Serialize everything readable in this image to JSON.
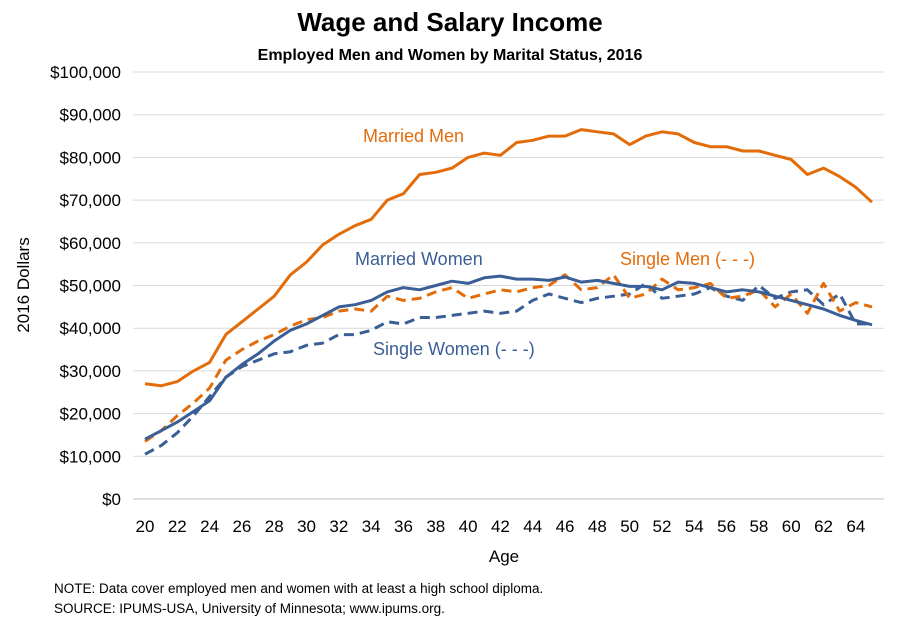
{
  "chart_data": {
    "type": "line",
    "title": "Wage and Salary Income",
    "subtitle": "Employed Men and Women by Marital Status, 2016",
    "xlabel": "Age",
    "ylabel": "2016 Dollars",
    "xlim": [
      20,
      65
    ],
    "ylim": [
      0,
      100000
    ],
    "x_ticks": [
      20,
      22,
      24,
      26,
      28,
      30,
      32,
      34,
      36,
      38,
      40,
      42,
      44,
      46,
      48,
      50,
      52,
      54,
      56,
      58,
      60,
      62,
      64
    ],
    "y_ticks": [
      "$0",
      "$10,000",
      "$20,000",
      "$30,000",
      "$40,000",
      "$50,000",
      "$60,000",
      "$70,000",
      "$80,000",
      "$90,000",
      "$100,000"
    ],
    "grid": "horizontal",
    "legend": "inline labels",
    "x": [
      20,
      21,
      22,
      23,
      24,
      25,
      26,
      27,
      28,
      29,
      30,
      31,
      32,
      33,
      34,
      35,
      36,
      37,
      38,
      39,
      40,
      41,
      42,
      43,
      44,
      45,
      46,
      47,
      48,
      49,
      50,
      51,
      52,
      53,
      54,
      55,
      56,
      57,
      58,
      59,
      60,
      61,
      62,
      63,
      64,
      65
    ],
    "series": [
      {
        "name": "Married Men",
        "label": "Married Men",
        "color": "#E36C0A",
        "dash": "solid",
        "values": [
          27000,
          26500,
          27500,
          30000,
          32000,
          38500,
          41500,
          44500,
          47500,
          52500,
          55500,
          59500,
          62000,
          64000,
          65500,
          70000,
          71500,
          76000,
          76500,
          77500,
          80000,
          81000,
          80500,
          83500,
          84000,
          85000,
          85000,
          86500,
          86000,
          85500,
          83000,
          85000,
          86000,
          85500,
          83500,
          82500,
          82500,
          81500,
          81500,
          80500,
          79500,
          76000,
          77500,
          75500,
          73000,
          69500
        ]
      },
      {
        "name": "Married Women",
        "label": "Married Women",
        "color": "#3A5E96",
        "dash": "solid",
        "values": [
          14000,
          16000,
          18000,
          20500,
          23000,
          28500,
          31500,
          34000,
          37000,
          39500,
          41000,
          43000,
          45000,
          45500,
          46500,
          48500,
          49500,
          49000,
          50000,
          51000,
          50500,
          51800,
          52200,
          51500,
          51500,
          51200,
          52000,
          50800,
          51200,
          50500,
          49800,
          49800,
          49000,
          50800,
          50500,
          49500,
          48500,
          49000,
          48500,
          47500,
          46500,
          45500,
          44500,
          43000,
          41800,
          40800
        ]
      },
      {
        "name": "Single Men",
        "label": "Single Men (- - -)",
        "color": "#E36C0A",
        "dash": "dashed",
        "values": [
          13500,
          16000,
          19500,
          22500,
          26000,
          32500,
          35000,
          37000,
          38500,
          40500,
          42000,
          42500,
          44000,
          44500,
          44000,
          47500,
          46500,
          47000,
          48500,
          49500,
          47000,
          48000,
          49000,
          48500,
          49500,
          50000,
          52500,
          49000,
          49500,
          52500,
          47000,
          48000,
          51500,
          49000,
          49500,
          50500,
          47000,
          47500,
          49000,
          45000,
          48000,
          43500,
          50500,
          44000,
          46000,
          45000
        ]
      },
      {
        "name": "Single Women",
        "label": "Single Women (- - -)",
        "color": "#3A5E96",
        "dash": "dashed",
        "values": [
          10500,
          12500,
          15500,
          19500,
          24000,
          28500,
          31000,
          32500,
          34000,
          34500,
          36000,
          36500,
          38500,
          38500,
          39500,
          41500,
          41000,
          42500,
          42500,
          43000,
          43500,
          44000,
          43500,
          44000,
          46500,
          48000,
          47000,
          46000,
          47000,
          47500,
          48000,
          50500,
          47000,
          47500,
          48000,
          49500,
          47500,
          46500,
          50000,
          47000,
          48500,
          49000,
          45500,
          48000,
          41000,
          41000
        ]
      }
    ],
    "notes": [
      "NOTE: Data cover employed men and women with at least a high school diploma.",
      "SOURCE: IPUMS-USA,  University of Minnesota; www.ipums.org."
    ]
  }
}
